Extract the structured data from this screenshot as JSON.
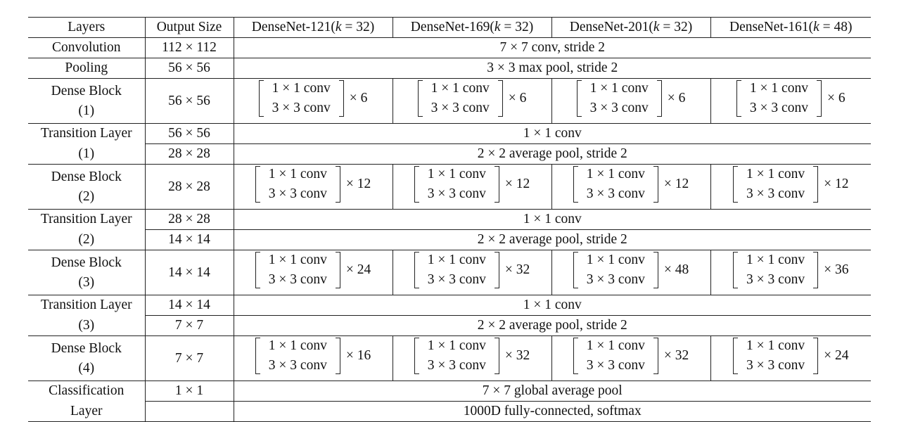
{
  "header": {
    "layers": "Layers",
    "output_size": "Output Size",
    "models": [
      {
        "prefix": "DenseNet-121(",
        "k": "k",
        "suffix": " = 32)"
      },
      {
        "prefix": "DenseNet-169(",
        "k": "k",
        "suffix": " = 32)"
      },
      {
        "prefix": "DenseNet-201(",
        "k": "k",
        "suffix": " = 32)"
      },
      {
        "prefix": "DenseNet-161(",
        "k": "k",
        "suffix": " = 48)"
      }
    ]
  },
  "conv_line1": "1 × 1 conv",
  "conv_line2": "3 × 3 conv",
  "rows": {
    "convolution": {
      "layer": "Convolution",
      "size": "112 × 112",
      "desc": "7 × 7 conv, stride 2"
    },
    "pooling": {
      "layer": "Pooling",
      "size": "56 × 56",
      "desc": "3 × 3 max pool, stride 2"
    },
    "dense1": {
      "layer_a": "Dense Block",
      "layer_b": "(1)",
      "size": "56 × 56",
      "mult": [
        "× 6",
        "× 6",
        "× 6",
        "× 6"
      ]
    },
    "trans1": {
      "layer_a": "Transition Layer",
      "layer_b": "(1)",
      "size_a": "56 × 56",
      "size_b": "28 × 28",
      "desc_a": "1 × 1 conv",
      "desc_b": "2 × 2 average pool, stride 2"
    },
    "dense2": {
      "layer_a": "Dense Block",
      "layer_b": "(2)",
      "size": "28 × 28",
      "mult": [
        "× 12",
        "× 12",
        "× 12",
        "× 12"
      ]
    },
    "trans2": {
      "layer_a": "Transition Layer",
      "layer_b": "(2)",
      "size_a": "28 × 28",
      "size_b": "14 × 14",
      "desc_a": "1 × 1 conv",
      "desc_b": "2 × 2 average pool, stride 2"
    },
    "dense3": {
      "layer_a": "Dense Block",
      "layer_b": "(3)",
      "size": "14 × 14",
      "mult": [
        "× 24",
        "× 32",
        "× 48",
        "× 36"
      ]
    },
    "trans3": {
      "layer_a": "Transition Layer",
      "layer_b": "(3)",
      "size_a": "14 × 14",
      "size_b": "7 × 7",
      "desc_a": "1 × 1 conv",
      "desc_b": "2 × 2 average pool, stride 2"
    },
    "dense4": {
      "layer_a": "Dense Block",
      "layer_b": "(4)",
      "size": "7 × 7",
      "mult": [
        "× 16",
        "× 32",
        "× 32",
        "× 24"
      ]
    },
    "classification": {
      "layer_a": "Classification",
      "layer_b": "Layer",
      "size": "1 × 1",
      "desc_a": "7 × 7 global average pool",
      "desc_b": "1000D fully-connected, softmax"
    }
  }
}
